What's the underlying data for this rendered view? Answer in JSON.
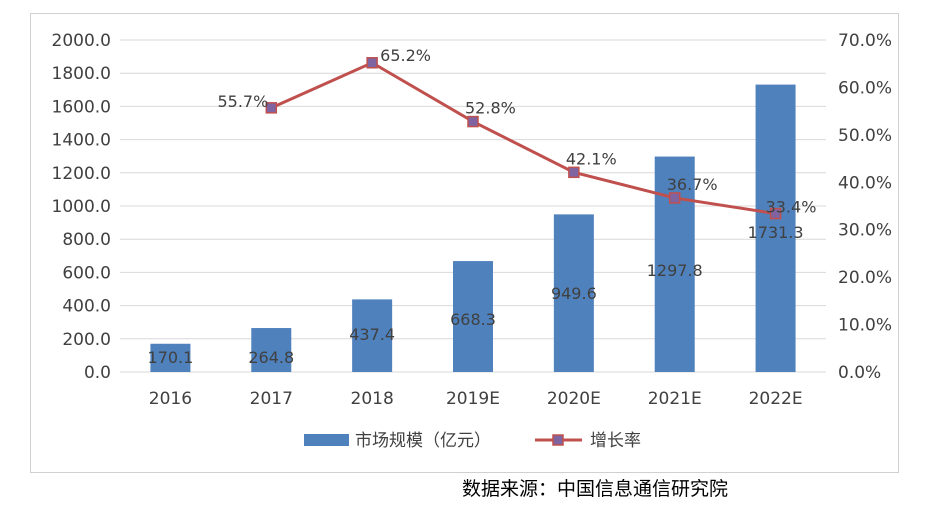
{
  "chart_data": {
    "type": "bar",
    "categories": [
      "2016",
      "2017",
      "2018",
      "2019E",
      "2020E",
      "2021E",
      "2022E"
    ],
    "series": [
      {
        "name": "市场规模（亿元）",
        "type": "bar",
        "axis": "left",
        "color": "#4f81bd",
        "values": [
          170.1,
          264.8,
          437.4,
          668.3,
          949.6,
          1297.8,
          1731.3
        ],
        "labels": [
          "170.1",
          "264.8",
          "437.4",
          "668.3",
          "949.6",
          "1297.8",
          "1731.3"
        ]
      },
      {
        "name": "增长率",
        "type": "line",
        "axis": "right",
        "color": "#c0504d",
        "marker_color": "#8064a2",
        "values": [
          null,
          55.7,
          65.2,
          52.8,
          42.1,
          36.7,
          33.4
        ],
        "labels": [
          "",
          "55.7%",
          "65.2%",
          "52.8%",
          "42.1%",
          "36.7%",
          "33.4%"
        ]
      }
    ],
    "y_left": {
      "ylim": [
        0,
        2000
      ],
      "ticks": [
        0,
        200,
        400,
        600,
        800,
        1000,
        1200,
        1400,
        1600,
        1800,
        2000
      ],
      "tick_labels": [
        "0.0",
        "200.0",
        "400.0",
        "600.0",
        "800.0",
        "1000.0",
        "1200.0",
        "1400.0",
        "1600.0",
        "1800.0",
        "2000.0"
      ]
    },
    "y_right": {
      "ylim": [
        0,
        70
      ],
      "ticks": [
        0,
        10,
        20,
        30,
        40,
        50,
        60,
        70
      ],
      "tick_labels": [
        "0.0%",
        "10.0%",
        "20.0%",
        "30.0%",
        "40.0%",
        "50.0%",
        "60.0%",
        "70.0%"
      ]
    },
    "grid": true,
    "legend_position": "bottom"
  },
  "source": "数据来源：中国信息通信研究院"
}
